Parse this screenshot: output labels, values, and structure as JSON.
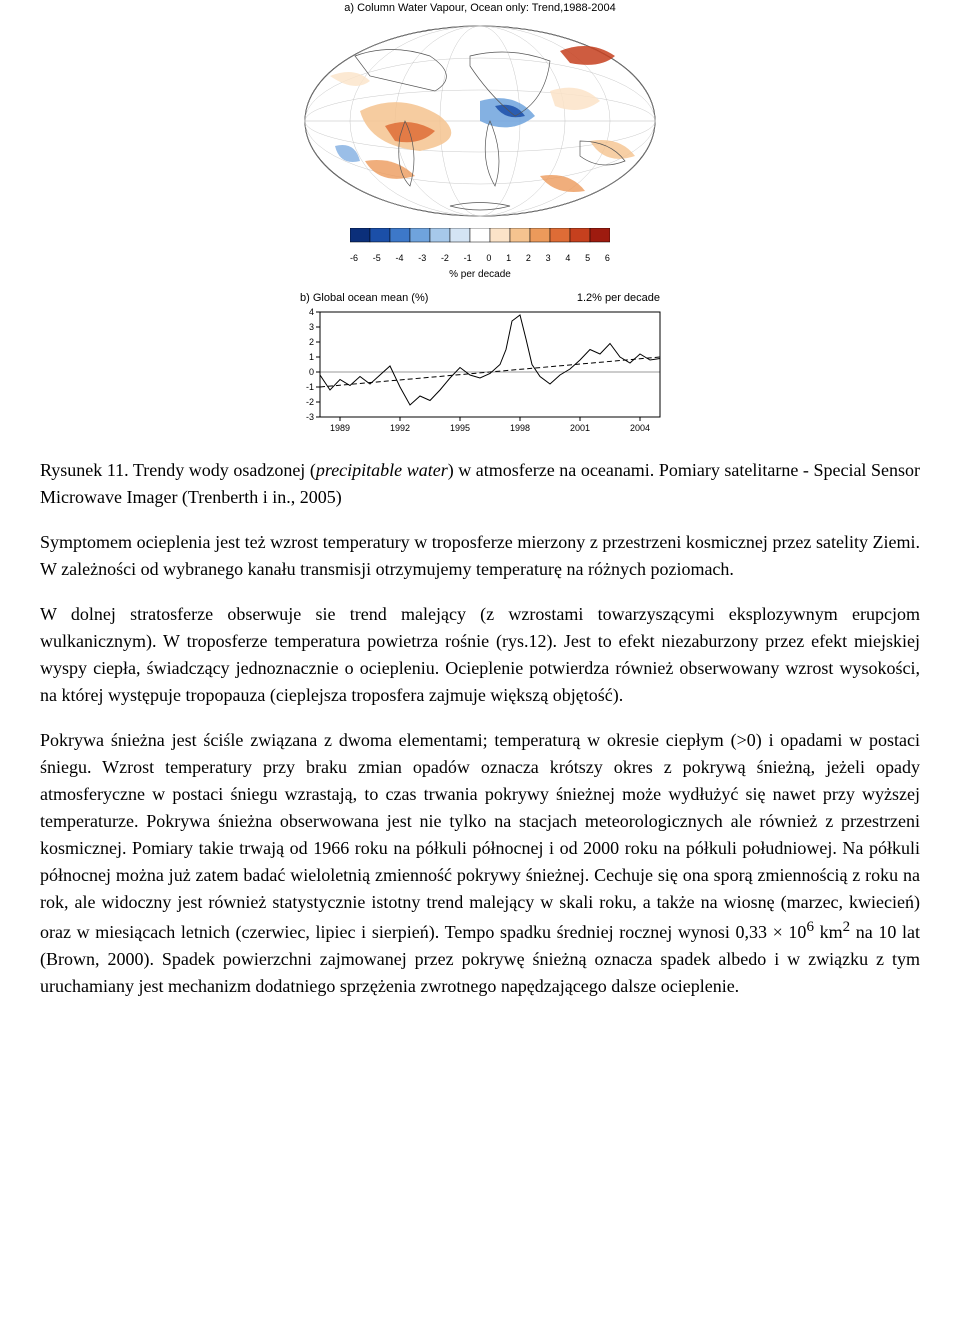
{
  "figure": {
    "panel_a": {
      "title": "a) Column Water Vapour, Ocean only: Trend,1988-2004",
      "colorbar": {
        "ticks": [
          "-6",
          "-5",
          "-4",
          "-3",
          "-2",
          "-1",
          "0",
          "1",
          "2",
          "3",
          "4",
          "5",
          "6"
        ],
        "unit": "% per decade",
        "colors": [
          "#0b2f7a",
          "#1b4fa8",
          "#3d78c9",
          "#6fa3dd",
          "#a6c8ea",
          "#d4e4f4",
          "#ffffff",
          "#fbe3c8",
          "#f5c38f",
          "#ec9a5b",
          "#de6c36",
          "#c6401e",
          "#9e1b0f"
        ]
      }
    },
    "panel_b": {
      "title_left": "b) Global ocean mean (%)",
      "title_right": "1.2% per decade",
      "xticks": [
        "1989",
        "1992",
        "1995",
        "1998",
        "2001",
        "2004"
      ],
      "yticks": [
        "-3",
        "-2",
        "-1",
        "0",
        "1",
        "2",
        "3",
        "4"
      ],
      "ylim": [
        -3,
        4
      ],
      "xlim": [
        1988,
        2005
      ]
    }
  },
  "caption": {
    "label": "Rysunek 11.",
    "text_a": " Trendy wody osadzonej (",
    "italic": "precipitable water",
    "text_b": ") w atmosferze na oceanami. Pomiary satelitarne - Special Sensor Microwave Imager (Trenberth i in., 2005)"
  },
  "para1": "Symptomem ocieplenia jest też wzrost temperatury w troposferze mierzony z przestrzeni kosmicznej przez satelity Ziemi. W zależności od wybranego kanału transmisji otrzymujemy temperaturę na różnych poziomach.",
  "para2": "W dolnej stratosferze obserwuje sie trend malejący  (z wzrostami towarzyszącymi eksplozywnym erupcjom wulkanicznym). W troposferze temperatura powietrza rośnie (rys.12). Jest to efekt niezaburzony przez efekt miejskiej wyspy ciepła, świadczący jednoznacznie o ociepleniu. Ocieplenie potwierdza również obserwowany wzrost wysokości, na której występuje tropopauza (cieplejsza troposfera zajmuje większą objętość).",
  "para3_a": "Pokrywa śnieżna jest ściśle związana z dwoma elementami; temperaturą w okresie ciepłym (>0) i opadami w postaci śniegu. Wzrost temperatury przy braku zmian opadów oznacza krótszy okres z pokrywą śnieżną, jeżeli opady atmosferyczne w postaci śniegu wzrastają, to czas trwania pokrywy śnieżnej może wydłużyć się nawet przy wyższej temperaturze. Pokrywa śnieżna obserwowana jest nie tylko na stacjach meteorologicznych ale również z przestrzeni kosmicznej. Pomiary takie trwają od 1966 roku na półkuli północnej i od 2000 roku na półkuli południowej. Na półkuli północnej można już zatem badać wieloletnią zmienność pokrywy śnieżnej. Cechuje się ona sporą zmiennością z roku na rok, ale widoczny jest również statystycznie istotny trend malejący w skali roku, a także na wiosnę (marzec, kwiecień) oraz w miesiącach letnich (czerwiec, lipiec i sierpień). Tempo spadku średniej rocznej wynosi 0,33 × 10",
  "para3_sup": "6",
  "para3_b": " km",
  "para3_sup2": "2",
  "para3_c": " na 10 lat (Brown, 2000). Spadek powierzchni zajmowanej przez pokrywę śnieżną oznacza spadek albedo i w związku z tym uruchamiany jest mechanizm dodatniego sprzężenia zwrotnego napędzającego dalsze ocieplenie."
}
